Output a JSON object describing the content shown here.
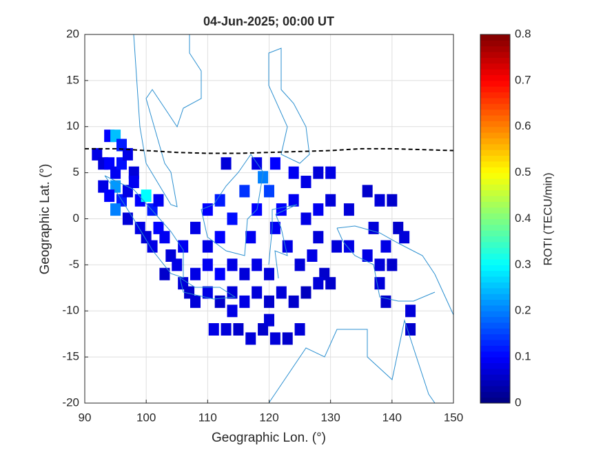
{
  "chart_data": {
    "type": "heatmap",
    "title": "04-Jun-2025; 00:00 UT",
    "x_label": "Geographic Lon. (°)",
    "y_label": "Geographic Lat. (°)",
    "colorbar_label": "ROTI (TECU/min)",
    "colormap": "jet",
    "grid": true,
    "xlim": [
      90,
      150
    ],
    "xticks": [
      90,
      100,
      110,
      120,
      130,
      140,
      150
    ],
    "ylim": [
      -20,
      20
    ],
    "yticks": [
      -20,
      -15,
      -10,
      -5,
      0,
      5,
      10,
      15,
      20
    ],
    "clim": [
      0,
      0.8
    ],
    "cticks": [
      0,
      0.1,
      0.2,
      0.3,
      0.4,
      0.5,
      0.6,
      0.7,
      0.8
    ],
    "lon": [
      92,
      93,
      94,
      95,
      96,
      94,
      95,
      96,
      97,
      98,
      93,
      95,
      94,
      96,
      95,
      97,
      98,
      99,
      100,
      101,
      102,
      97,
      99,
      100,
      101,
      102,
      103,
      104,
      103,
      105,
      106,
      107,
      108,
      110,
      112,
      114,
      116,
      118,
      120,
      122,
      124,
      126,
      108,
      110,
      112,
      114,
      116,
      118,
      120,
      106,
      108,
      110,
      112,
      114,
      116,
      118,
      120,
      119,
      117,
      112,
      110,
      121,
      123,
      122,
      124,
      126,
      128,
      125,
      127,
      129,
      128,
      130,
      126,
      124,
      121,
      118,
      113,
      128,
      130,
      131,
      133,
      133,
      136,
      138,
      140,
      137,
      139,
      141,
      142,
      136,
      138,
      140,
      138,
      139,
      143,
      143,
      128,
      130,
      111,
      113,
      115,
      117,
      119,
      121,
      123,
      125,
      114,
      120
    ],
    "lat": [
      7,
      6,
      9,
      9,
      8,
      6,
      5,
      6,
      7,
      5,
      3.5,
      3.5,
      2.5,
      2,
      1,
      3,
      4,
      2,
      2.5,
      1,
      2,
      0,
      -1,
      -2,
      -3,
      -1,
      -2,
      -4,
      -6,
      -5,
      -7,
      -8,
      -9,
      -8,
      -9,
      -8,
      -9,
      -8,
      -9,
      -8,
      -9,
      -8,
      -6,
      -5,
      -6,
      -5,
      -6,
      -5,
      -6,
      -3,
      -1,
      1,
      2,
      0,
      3,
      1,
      3,
      4.5,
      -2,
      -2,
      -3,
      -1,
      -3,
      1,
      2,
      0,
      -2,
      -5,
      -4,
      -6,
      1,
      2,
      4,
      5,
      6,
      6,
      6,
      5,
      5,
      -3,
      -3,
      1,
      3,
      2,
      2,
      -1,
      -3,
      -1,
      -2,
      -4,
      -5,
      -5,
      -7,
      -9,
      -10,
      -12,
      -7,
      -7,
      -12,
      -12,
      -12,
      -13,
      -12,
      -13,
      -13,
      -12,
      -10,
      -11
    ],
    "values": [
      0.08,
      0.07,
      0.1,
      0.25,
      0.12,
      0.1,
      0.09,
      0.11,
      0.08,
      0.07,
      0.08,
      0.22,
      0.1,
      0.12,
      0.2,
      0.08,
      0.09,
      0.1,
      0.3,
      0.12,
      0.09,
      0.07,
      0.08,
      0.07,
      0.08,
      0.1,
      0.09,
      0.07,
      0.06,
      0.08,
      0.07,
      0.06,
      0.07,
      0.08,
      0.06,
      0.07,
      0.08,
      0.07,
      0.06,
      0.07,
      0.06,
      0.05,
      0.08,
      0.09,
      0.1,
      0.08,
      0.07,
      0.08,
      0.07,
      0.09,
      0.08,
      0.1,
      0.12,
      0.11,
      0.14,
      0.1,
      0.15,
      0.2,
      0.09,
      0.1,
      0.08,
      0.09,
      0.08,
      0.1,
      0.09,
      0.08,
      0.07,
      0.07,
      0.08,
      0.06,
      0.09,
      0.07,
      0.08,
      0.09,
      0.1,
      0.08,
      0.07,
      0.07,
      0.08,
      0.07,
      0.08,
      0.07,
      0.06,
      0.07,
      0.06,
      0.07,
      0.08,
      0.06,
      0.07,
      0.08,
      0.07,
      0.06,
      0.07,
      0.06,
      0.07,
      0.06,
      0.07,
      0.06,
      0.08,
      0.07,
      0.06,
      0.07,
      0.06,
      0.07,
      0.06,
      0.07,
      0.08,
      0.07
    ],
    "equator": {
      "x": [
        90,
        95,
        100,
        105,
        110,
        115,
        120,
        125,
        130,
        135,
        140,
        145,
        150
      ],
      "y": [
        7.6,
        7.6,
        7.4,
        7.2,
        7.1,
        7.1,
        7.2,
        7.3,
        7.4,
        7.6,
        7.6,
        7.5,
        7.4
      ]
    }
  }
}
